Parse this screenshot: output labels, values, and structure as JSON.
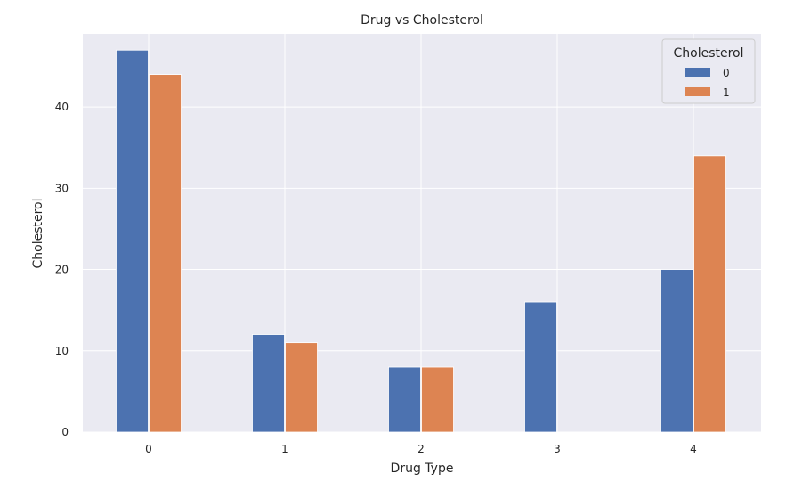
{
  "chart_data": {
    "type": "bar",
    "title": "Drug vs Cholesterol",
    "xlabel": "Drug Type",
    "ylabel": "Cholesterol",
    "categories": [
      "0",
      "1",
      "2",
      "3",
      "4"
    ],
    "series": [
      {
        "name": "0",
        "values": [
          47,
          12,
          8,
          16,
          20
        ],
        "color": "#4c72b0"
      },
      {
        "name": "1",
        "values": [
          44,
          11,
          8,
          0,
          34
        ],
        "color": "#dd8452"
      }
    ],
    "ylim": [
      0,
      49
    ],
    "yticks": [
      0,
      10,
      20,
      30,
      40
    ],
    "grid": true,
    "legend": {
      "title": "Cholesterol",
      "position": "top-right"
    },
    "colors": {
      "plot_background": "#eaeaf2",
      "grid": "#ffffff"
    }
  }
}
